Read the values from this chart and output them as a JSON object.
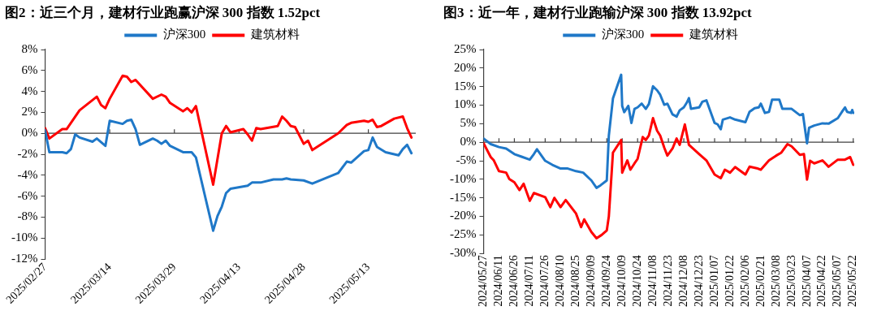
{
  "chart_data": [
    {
      "type": "line",
      "title": "图2：近三个月，建材行业跑赢沪深 300 指数 1.52pct",
      "legend": "top",
      "grid": false,
      "line_style": "solid",
      "marker": "none",
      "xlim": [
        "2025-02-27",
        "2025-05-24"
      ],
      "xticks": [
        {
          "value": "2025-02-27",
          "label": "2025/02/27"
        },
        {
          "value": "2025-03-14",
          "label": "2025/03/14"
        },
        {
          "value": "2025-03-29",
          "label": "2025/03/29"
        },
        {
          "value": "2025-04-13",
          "label": "2025/04/13"
        },
        {
          "value": "2025-04-28",
          "label": "2025/04/28"
        },
        {
          "value": "2025-05-13",
          "label": "2025/05/13"
        }
      ],
      "ylim": [
        -12,
        8
      ],
      "yticks": [
        {
          "value": -12,
          "label": "-12%"
        },
        {
          "value": -10,
          "label": "-10%"
        },
        {
          "value": -8,
          "label": "-8%"
        },
        {
          "value": -6,
          "label": "-6%"
        },
        {
          "value": -4,
          "label": "-4%"
        },
        {
          "value": -2,
          "label": "-2%"
        },
        {
          "value": 0,
          "label": "0%"
        },
        {
          "value": 2,
          "label": "2%"
        },
        {
          "value": 4,
          "label": "4%"
        },
        {
          "value": 6,
          "label": "6%"
        },
        {
          "value": 8,
          "label": "8%"
        }
      ],
      "ref_lines": [
        {
          "axis": "y",
          "value": 0,
          "color": "#404040"
        }
      ],
      "series": [
        {
          "name": "沪深300",
          "color": "#1f78c8",
          "x": [
            "2025-02-27",
            "2025-02-28",
            "2025-03-03",
            "2025-03-04",
            "2025-03-05",
            "2025-03-06",
            "2025-03-07",
            "2025-03-10",
            "2025-03-11",
            "2025-03-13",
            "2025-03-14",
            "2025-03-17",
            "2025-03-18",
            "2025-03-19",
            "2025-03-20",
            "2025-03-21",
            "2025-03-24",
            "2025-03-25",
            "2025-03-26",
            "2025-03-27",
            "2025-03-28",
            "2025-03-31",
            "2025-04-02",
            "2025-04-03",
            "2025-04-07",
            "2025-04-08",
            "2025-04-09",
            "2025-04-10",
            "2025-04-11",
            "2025-04-15",
            "2025-04-16",
            "2025-04-18",
            "2025-04-21",
            "2025-04-23",
            "2025-04-24",
            "2025-04-25",
            "2025-04-28",
            "2025-04-30",
            "2025-05-06",
            "2025-05-08",
            "2025-05-09",
            "2025-05-12",
            "2025-05-13",
            "2025-05-14",
            "2025-05-15",
            "2025-05-17",
            "2025-05-20",
            "2025-05-21",
            "2025-05-22",
            "2025-05-23"
          ],
          "values": [
            0.3,
            -1.8,
            -1.8,
            -1.9,
            -1.5,
            -0.1,
            -0.4,
            -0.8,
            -0.5,
            -1.2,
            1.2,
            0.9,
            1.2,
            1.3,
            0.4,
            -1.1,
            -0.5,
            -0.7,
            -1.0,
            -0.7,
            -1.2,
            -1.8,
            -1.8,
            -2.3,
            -9.3,
            -7.9,
            -7.0,
            -5.7,
            -5.3,
            -5.0,
            -4.7,
            -4.7,
            -4.4,
            -4.4,
            -4.3,
            -4.4,
            -4.5,
            -4.8,
            -3.8,
            -2.7,
            -2.8,
            -1.7,
            -1.6,
            -0.4,
            -1.3,
            -1.8,
            -2.1,
            -1.5,
            -1.1,
            -1.9
          ]
        },
        {
          "name": "建筑材料",
          "color": "#ff0000",
          "x": [
            "2025-02-27",
            "2025-02-28",
            "2025-03-03",
            "2025-03-04",
            "2025-03-06",
            "2025-03-07",
            "2025-03-11",
            "2025-03-12",
            "2025-03-13",
            "2025-03-14",
            "2025-03-17",
            "2025-03-18",
            "2025-03-19",
            "2025-03-20",
            "2025-03-24",
            "2025-03-26",
            "2025-03-27",
            "2025-03-28",
            "2025-03-31",
            "2025-04-01",
            "2025-04-02",
            "2025-04-03",
            "2025-04-07",
            "2025-04-09",
            "2025-04-10",
            "2025-04-11",
            "2025-04-14",
            "2025-04-15",
            "2025-04-16",
            "2025-04-17",
            "2025-04-18",
            "2025-04-22",
            "2025-04-23",
            "2025-04-24",
            "2025-04-25",
            "2025-04-26",
            "2025-04-28",
            "2025-04-29",
            "2025-04-30",
            "2025-05-06",
            "2025-05-08",
            "2025-05-09",
            "2025-05-12",
            "2025-05-13",
            "2025-05-14",
            "2025-05-15",
            "2025-05-16",
            "2025-05-19",
            "2025-05-21",
            "2025-05-22",
            "2025-05-23"
          ],
          "values": [
            0.5,
            -0.5,
            0.4,
            0.4,
            1.6,
            2.2,
            3.5,
            2.7,
            2.4,
            3.3,
            5.5,
            5.4,
            4.9,
            5.1,
            3.3,
            3.7,
            3.5,
            2.9,
            2.1,
            2.4,
            2.0,
            2.6,
            -4.9,
            0.0,
            0.7,
            0.1,
            0.4,
            -0.1,
            -0.7,
            0.5,
            0.4,
            0.7,
            1.6,
            1.2,
            0.7,
            0.6,
            -1.0,
            -0.7,
            -1.6,
            0.0,
            0.8,
            1.0,
            1.2,
            1.1,
            1.3,
            0.6,
            0.7,
            1.4,
            1.6,
            0.5,
            -0.4
          ]
        }
      ]
    },
    {
      "type": "line",
      "title": "图3：近一年，建材行业跑输沪深 300 指数 13.92pct",
      "legend": "top",
      "grid": false,
      "line_style": "solid",
      "marker": "none",
      "xlim": [
        "2024-05-27",
        "2025-05-23"
      ],
      "xticks": [
        {
          "value": "2024-05-27",
          "label": "2024/05/27"
        },
        {
          "value": "2024-06-11",
          "label": "2024/06/11"
        },
        {
          "value": "2024-06-26",
          "label": "2024/06/26"
        },
        {
          "value": "2024-07-11",
          "label": "2024/07/11"
        },
        {
          "value": "2024-07-26",
          "label": "2024/07/26"
        },
        {
          "value": "2024-08-10",
          "label": "2024/08/10"
        },
        {
          "value": "2024-08-25",
          "label": "2024/08/25"
        },
        {
          "value": "2024-09-09",
          "label": "2024/09/09"
        },
        {
          "value": "2024-09-24",
          "label": "2024/09/24"
        },
        {
          "value": "2024-10-09",
          "label": "2024/10/09"
        },
        {
          "value": "2024-10-24",
          "label": "2024/10/24"
        },
        {
          "value": "2024-11-08",
          "label": "2024/11/08"
        },
        {
          "value": "2024-11-23",
          "label": "2024/11/23"
        },
        {
          "value": "2024-12-08",
          "label": "2024/12/08"
        },
        {
          "value": "2024-12-23",
          "label": "2024/12/23"
        },
        {
          "value": "2025-01-07",
          "label": "2025/01/07"
        },
        {
          "value": "2025-01-22",
          "label": "2025/01/22"
        },
        {
          "value": "2025-02-06",
          "label": "2025/02/06"
        },
        {
          "value": "2025-02-21",
          "label": "2025/02/21"
        },
        {
          "value": "2025-03-08",
          "label": "2025/03/08"
        },
        {
          "value": "2025-03-23",
          "label": "2025/03/23"
        },
        {
          "value": "2025-04-07",
          "label": "2025/04/07"
        },
        {
          "value": "2025-04-22",
          "label": "2025/04/22"
        },
        {
          "value": "2025-05-07",
          "label": "2025/05/07"
        },
        {
          "value": "2025-05-22",
          "label": "2025/05/22"
        }
      ],
      "ylim": [
        -30,
        25
      ],
      "yticks": [
        {
          "value": -30,
          "label": "-30%"
        },
        {
          "value": -25,
          "label": "-25%"
        },
        {
          "value": -20,
          "label": "-20%"
        },
        {
          "value": -15,
          "label": "-15%"
        },
        {
          "value": -10,
          "label": "-10%"
        },
        {
          "value": -5,
          "label": "-5%"
        },
        {
          "value": 0,
          "label": "0%"
        },
        {
          "value": 5,
          "label": "5%"
        },
        {
          "value": 10,
          "label": "10%"
        },
        {
          "value": 15,
          "label": "15%"
        },
        {
          "value": 20,
          "label": "20%"
        },
        {
          "value": 25,
          "label": "25%"
        }
      ],
      "ref_lines": [
        {
          "axis": "y",
          "value": 0,
          "color": "#404040"
        }
      ],
      "series": [
        {
          "name": "沪深300",
          "color": "#1f78c8",
          "x": [
            "2024-05-27",
            "2024-06-03",
            "2024-06-11",
            "2024-06-18",
            "2024-06-26",
            "2024-07-03",
            "2024-07-11",
            "2024-07-15",
            "2024-07-18",
            "2024-07-26",
            "2024-08-02",
            "2024-08-10",
            "2024-08-17",
            "2024-08-25",
            "2024-09-01",
            "2024-09-09",
            "2024-09-14",
            "2024-09-18",
            "2024-09-24",
            "2024-09-26",
            "2024-09-30",
            "2024-10-08",
            "2024-10-09",
            "2024-10-11",
            "2024-10-15",
            "2024-10-18",
            "2024-10-21",
            "2024-10-24",
            "2024-10-28",
            "2024-11-01",
            "2024-11-04",
            "2024-11-08",
            "2024-11-12",
            "2024-11-15",
            "2024-11-19",
            "2024-11-22",
            "2024-11-27",
            "2024-12-01",
            "2024-12-04",
            "2024-12-08",
            "2024-12-11",
            "2024-12-13",
            "2024-12-15",
            "2024-12-23",
            "2024-12-26",
            "2024-12-30",
            "2025-01-07",
            "2025-01-10",
            "2025-01-13",
            "2025-01-15",
            "2025-01-22",
            "2025-01-27",
            "2025-02-06",
            "2025-02-10",
            "2025-02-15",
            "2025-02-19",
            "2025-02-21",
            "2025-02-25",
            "2025-03-01",
            "2025-03-04",
            "2025-03-11",
            "2025-03-14",
            "2025-03-23",
            "2025-03-31",
            "2025-04-03",
            "2025-04-07",
            "2025-04-09",
            "2025-04-14",
            "2025-04-22",
            "2025-04-28",
            "2025-05-07",
            "2025-05-12",
            "2025-05-14",
            "2025-05-16",
            "2025-05-20",
            "2025-05-21",
            "2025-05-22"
          ],
          "values": [
            1.0,
            -0.5,
            -1.3,
            -1.7,
            -3.2,
            -3.9,
            -4.7,
            -3.2,
            -1.9,
            -5.0,
            -6.1,
            -7.1,
            -7.1,
            -7.8,
            -8.2,
            -10.3,
            -12.3,
            -11.6,
            -10.3,
            1.8,
            11.8,
            18.2,
            9.8,
            8.1,
            9.8,
            5.2,
            9.0,
            9.4,
            10.4,
            9.0,
            10.3,
            15.1,
            14.0,
            12.8,
            10.1,
            10.4,
            7.5,
            6.9,
            8.6,
            9.4,
            10.7,
            11.9,
            9.0,
            9.4,
            10.9,
            11.3,
            5.2,
            4.8,
            3.5,
            6.1,
            6.7,
            6.1,
            5.4,
            8.2,
            9.2,
            9.4,
            10.4,
            7.9,
            8.2,
            11.5,
            11.5,
            9.0,
            9.0,
            7.3,
            7.6,
            -0.3,
            3.9,
            4.5,
            5.1,
            5.0,
            6.5,
            8.6,
            9.4,
            8.2,
            7.9,
            8.7,
            7.9
          ]
        },
        {
          "name": "建筑材料",
          "color": "#ff0000",
          "x": [
            "2024-05-27",
            "2024-06-03",
            "2024-06-06",
            "2024-06-11",
            "2024-06-18",
            "2024-06-21",
            "2024-06-26",
            "2024-07-01",
            "2024-07-05",
            "2024-07-11",
            "2024-07-15",
            "2024-07-26",
            "2024-07-31",
            "2024-08-04",
            "2024-08-10",
            "2024-08-15",
            "2024-08-25",
            "2024-08-30",
            "2024-09-02",
            "2024-09-09",
            "2024-09-14",
            "2024-09-19",
            "2024-09-24",
            "2024-09-26",
            "2024-09-30",
            "2024-10-08",
            "2024-10-09",
            "2024-10-14",
            "2024-10-17",
            "2024-10-21",
            "2024-10-24",
            "2024-10-29",
            "2024-11-01",
            "2024-11-04",
            "2024-11-08",
            "2024-11-12",
            "2024-11-15",
            "2024-11-19",
            "2024-11-22",
            "2024-11-27",
            "2024-12-01",
            "2024-12-04",
            "2024-12-09",
            "2024-12-13",
            "2024-12-23",
            "2024-12-30",
            "2025-01-07",
            "2025-01-13",
            "2025-01-17",
            "2025-01-22",
            "2025-01-27",
            "2025-02-06",
            "2025-02-10",
            "2025-02-17",
            "2025-02-21",
            "2025-03-01",
            "2025-03-08",
            "2025-03-13",
            "2025-03-19",
            "2025-03-23",
            "2025-03-31",
            "2025-04-04",
            "2025-04-07",
            "2025-04-10",
            "2025-04-14",
            "2025-04-22",
            "2025-04-28",
            "2025-05-07",
            "2025-05-14",
            "2025-05-19",
            "2025-05-22"
          ],
          "values": [
            -0.3,
            -4.0,
            -4.9,
            -7.8,
            -8.2,
            -9.9,
            -10.8,
            -12.9,
            -11.2,
            -15.8,
            -13.7,
            -14.8,
            -17.5,
            -15.0,
            -17.5,
            -15.6,
            -19.2,
            -22.9,
            -20.8,
            -24.2,
            -25.9,
            -25.0,
            -23.8,
            -20.0,
            -2.8,
            0.6,
            -8.2,
            -4.9,
            -7.4,
            -5.7,
            -4.5,
            1.4,
            0.6,
            1.8,
            6.5,
            3.1,
            1.8,
            -1.5,
            -3.6,
            -1.7,
            1.0,
            -0.7,
            4.8,
            -0.7,
            -3.2,
            -4.9,
            -8.7,
            -9.7,
            -7.4,
            -8.2,
            -6.7,
            -8.7,
            -6.6,
            -7.0,
            -7.4,
            -4.9,
            -3.6,
            -2.8,
            -0.5,
            -1.1,
            -3.4,
            -3.2,
            -10.1,
            -5.0,
            -5.7,
            -4.9,
            -6.6,
            -4.7,
            -4.7,
            -4.0,
            -6.1
          ]
        }
      ]
    }
  ]
}
